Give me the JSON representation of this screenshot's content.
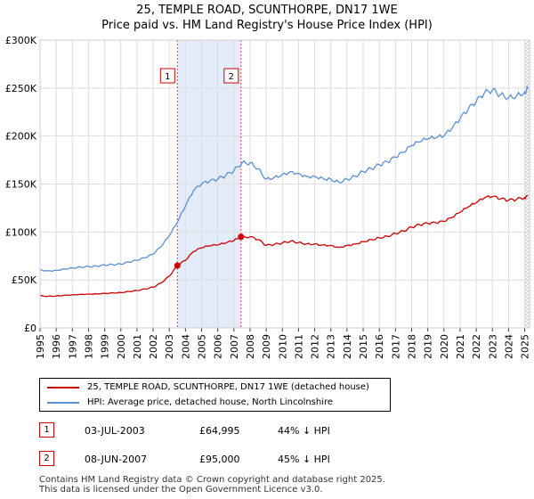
{
  "title": "25, TEMPLE ROAD, SCUNTHORPE, DN17 1WE",
  "subtitle": "Price paid vs. HM Land Registry's House Price Index (HPI)",
  "chart_data": {
    "type": "line",
    "ylim": [
      0,
      300000
    ],
    "xlim": [
      1995,
      2025.3
    ],
    "y_ticks": [
      0,
      50000,
      100000,
      150000,
      200000,
      250000,
      300000
    ],
    "y_tick_labels": [
      "£0",
      "£50K",
      "£100K",
      "£150K",
      "£200K",
      "£250K",
      "£300K"
    ],
    "x_ticks": [
      1995,
      1996,
      1997,
      1998,
      1999,
      2000,
      2001,
      2002,
      2003,
      2004,
      2005,
      2006,
      2007,
      2008,
      2009,
      2010,
      2011,
      2012,
      2013,
      2014,
      2015,
      2016,
      2017,
      2018,
      2019,
      2020,
      2021,
      2022,
      2023,
      2024,
      2025
    ],
    "x_tick_labels": [
      "1995",
      "1996",
      "1997",
      "1998",
      "1999",
      "2000",
      "2001",
      "2002",
      "2003",
      "2004",
      "2005",
      "2006",
      "2007",
      "2008",
      "2009",
      "2010",
      "2011",
      "2012",
      "2013",
      "2014",
      "2015",
      "2016",
      "2017",
      "2018",
      "2019",
      "2020",
      "2021",
      "2022",
      "2023",
      "2024",
      "2025"
    ],
    "grid": true,
    "series": [
      {
        "name": "HPI: Average price, detached house, North Lincolnshire",
        "color": "#5b8fd4",
        "points": [
          [
            1995.0,
            60500
          ],
          [
            1995.5,
            59500
          ],
          [
            1996.0,
            60000
          ],
          [
            1996.5,
            61500
          ],
          [
            1997.0,
            62500
          ],
          [
            1997.5,
            63500
          ],
          [
            1998.0,
            64000
          ],
          [
            1998.5,
            64500
          ],
          [
            1999.0,
            65500
          ],
          [
            1999.5,
            66000
          ],
          [
            2000.0,
            66500
          ],
          [
            2000.5,
            68500
          ],
          [
            2001.0,
            70500
          ],
          [
            2001.5,
            73000
          ],
          [
            2002.0,
            77000
          ],
          [
            2002.5,
            85000
          ],
          [
            2003.0,
            96000
          ],
          [
            2003.5,
            110000
          ],
          [
            2004.0,
            127000
          ],
          [
            2004.5,
            143000
          ],
          [
            2005.0,
            150000
          ],
          [
            2005.5,
            153000
          ],
          [
            2006.0,
            155000
          ],
          [
            2006.5,
            159000
          ],
          [
            2007.0,
            164000
          ],
          [
            2007.5,
            172000
          ],
          [
            2008.0,
            172000
          ],
          [
            2008.5,
            166000
          ],
          [
            2009.0,
            155000
          ],
          [
            2009.5,
            157000
          ],
          [
            2010.0,
            160000
          ],
          [
            2010.5,
            163000
          ],
          [
            2011.0,
            161000
          ],
          [
            2011.5,
            158000
          ],
          [
            2012.0,
            158000
          ],
          [
            2012.5,
            156000
          ],
          [
            2013.0,
            155000
          ],
          [
            2013.5,
            152000
          ],
          [
            2014.0,
            155000
          ],
          [
            2014.5,
            158000
          ],
          [
            2015.0,
            163000
          ],
          [
            2015.5,
            166000
          ],
          [
            2016.0,
            170000
          ],
          [
            2016.5,
            173000
          ],
          [
            2017.0,
            178000
          ],
          [
            2017.5,
            183000
          ],
          [
            2018.0,
            190000
          ],
          [
            2018.5,
            194000
          ],
          [
            2019.0,
            197000
          ],
          [
            2019.5,
            198000
          ],
          [
            2020.0,
            200000
          ],
          [
            2020.5,
            208000
          ],
          [
            2021.0,
            218000
          ],
          [
            2021.5,
            228000
          ],
          [
            2022.0,
            236000
          ],
          [
            2022.5,
            245000
          ],
          [
            2023.0,
            248000
          ],
          [
            2023.5,
            243000
          ],
          [
            2024.0,
            240000
          ],
          [
            2024.5,
            242000
          ],
          [
            2025.0,
            246000
          ],
          [
            2025.2,
            249000
          ]
        ]
      },
      {
        "name": "25, TEMPLE ROAD, SCUNTHORPE, DN17 1WE (detached house)",
        "color": "#cc0000",
        "points": [
          [
            1995.0,
            33500
          ],
          [
            1995.5,
            33000
          ],
          [
            1996.0,
            33300
          ],
          [
            1996.5,
            34000
          ],
          [
            1997.0,
            34500
          ],
          [
            1997.5,
            35000
          ],
          [
            1998.0,
            35300
          ],
          [
            1998.5,
            35500
          ],
          [
            1999.0,
            36000
          ],
          [
            1999.5,
            36500
          ],
          [
            2000.0,
            36800
          ],
          [
            2000.5,
            38000
          ],
          [
            2001.0,
            39000
          ],
          [
            2001.5,
            40500
          ],
          [
            2002.0,
            42500
          ],
          [
            2002.5,
            47000
          ],
          [
            2003.0,
            54000
          ],
          [
            2003.5,
            64995
          ],
          [
            2004.0,
            70500
          ],
          [
            2004.5,
            79500
          ],
          [
            2005.0,
            83500
          ],
          [
            2005.5,
            85500
          ],
          [
            2006.0,
            86500
          ],
          [
            2006.5,
            88500
          ],
          [
            2007.0,
            91000
          ],
          [
            2007.44,
            95000
          ],
          [
            2008.0,
            95000
          ],
          [
            2008.5,
            92000
          ],
          [
            2009.0,
            86000
          ],
          [
            2009.5,
            87000
          ],
          [
            2010.0,
            88500
          ],
          [
            2010.5,
            90500
          ],
          [
            2011.0,
            89000
          ],
          [
            2011.5,
            87500
          ],
          [
            2012.0,
            87500
          ],
          [
            2012.5,
            86500
          ],
          [
            2013.0,
            86000
          ],
          [
            2013.5,
            84000
          ],
          [
            2014.0,
            86000
          ],
          [
            2014.5,
            87500
          ],
          [
            2015.0,
            90000
          ],
          [
            2015.5,
            92000
          ],
          [
            2016.0,
            94000
          ],
          [
            2016.5,
            95500
          ],
          [
            2017.0,
            98500
          ],
          [
            2017.5,
            101000
          ],
          [
            2018.0,
            105000
          ],
          [
            2018.5,
            107500
          ],
          [
            2019.0,
            109000
          ],
          [
            2019.5,
            109500
          ],
          [
            2020.0,
            111000
          ],
          [
            2020.5,
            115000
          ],
          [
            2021.0,
            120500
          ],
          [
            2021.5,
            126000
          ],
          [
            2022.0,
            130500
          ],
          [
            2022.5,
            135500
          ],
          [
            2023.0,
            137000
          ],
          [
            2023.5,
            134500
          ],
          [
            2024.0,
            133000
          ],
          [
            2024.5,
            134000
          ],
          [
            2025.0,
            136000
          ],
          [
            2025.2,
            137500
          ]
        ]
      }
    ],
    "sales": [
      {
        "label": "1",
        "x": 2003.5,
        "y": 64995
      },
      {
        "label": "2",
        "x": 2007.44,
        "y": 95000
      }
    ],
    "shaded_region": [
      2003.5,
      2007.44
    ],
    "hatched_from": 2025.0
  },
  "legend": {
    "items": [
      {
        "label": "25, TEMPLE ROAD, SCUNTHORPE, DN17 1WE (detached house)",
        "color": "#cc0000"
      },
      {
        "label": "HPI: Average price, detached house, North Lincolnshire",
        "color": "#5b8fd4"
      }
    ]
  },
  "sales_table": [
    {
      "num": "1",
      "date": "03-JUL-2003",
      "price": "£64,995",
      "hpi": "44% ↓ HPI"
    },
    {
      "num": "2",
      "date": "08-JUN-2007",
      "price": "£95,000",
      "hpi": "45% ↓ HPI"
    }
  ],
  "footer": {
    "line1": "Contains HM Land Registry data © Crown copyright and database right 2025.",
    "line2": "This data is licensed under the Open Government Licence v3.0."
  }
}
